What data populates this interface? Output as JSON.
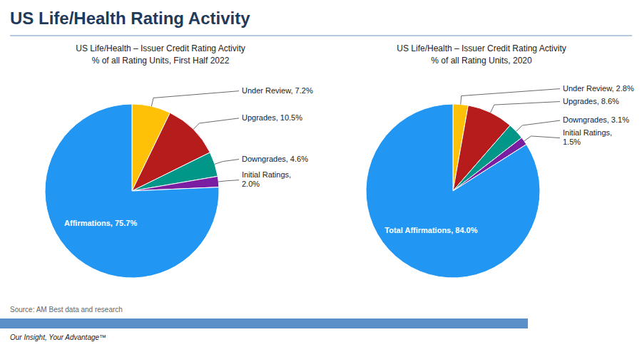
{
  "title": "US Life/Health Rating Activity",
  "chart_data": [
    {
      "type": "pie",
      "title": "US Life/Health – Issuer Credit Rating Activity",
      "subtitle": "% of all Rating Units, First Half 2022",
      "values": [
        7.2,
        10.5,
        4.6,
        2.0,
        75.7
      ],
      "value_labels": [
        "Under Review, 7.2%",
        "Upgrades, 10.5%",
        "Downgrades, 4.6%",
        "Initial Ratings,\n2.0%",
        "Affirmations, 75.7%"
      ],
      "colors": [
        "#FFC107",
        "#B71C1C",
        "#009688",
        "#7B1FA2",
        "#2196F3"
      ],
      "data_labels": true
    },
    {
      "type": "pie",
      "title": "US Life/Health – Issuer Credit Rating Activity",
      "subtitle": "% of all Rating Units, 2020",
      "values": [
        2.8,
        8.6,
        3.1,
        1.5,
        84.0
      ],
      "value_labels": [
        "Under Review, 2.8%",
        "Upgrades, 8.6%",
        "Downgrades, 3.1%",
        "Initial Ratings,\n1.5%",
        "Total Affirmations, 84.0%"
      ],
      "colors": [
        "#FFC107",
        "#B71C1C",
        "#009688",
        "#7B1FA2",
        "#2196F3"
      ],
      "data_labels": true
    }
  ],
  "annotations": [
    "Source: AM Best data and research",
    "Our Insight, Your Advantage™"
  ]
}
